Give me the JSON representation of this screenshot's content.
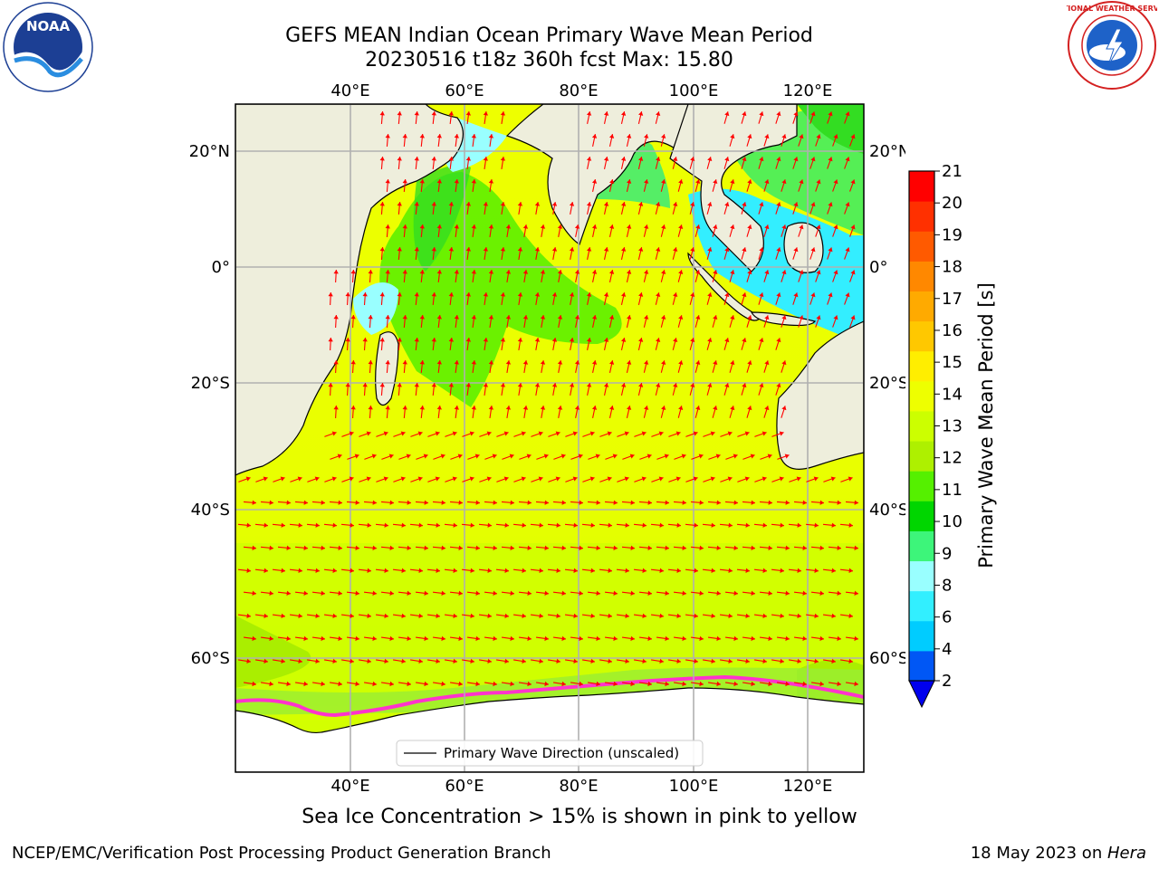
{
  "title": {
    "line1": "GEFS MEAN Indian Ocean Primary Wave Mean Period",
    "line2": "20230516 t18z 360h fcst   Max: 15.80"
  },
  "map": {
    "lon_labels": [
      "40°E",
      "60°E",
      "80°E",
      "100°E",
      "120°E"
    ],
    "lat_labels": [
      "20°N",
      "0°",
      "20°S",
      "40°S",
      "60°S"
    ],
    "legend_label": "Primary Wave Direction (unscaled)",
    "arrow_color": "#ff0000",
    "land_color": "#eeeedc"
  },
  "colorbar": {
    "label": "Primary Wave Mean Period [s]",
    "ticks": [
      "2",
      "4",
      "6",
      "8",
      "9",
      "10",
      "11",
      "12",
      "13",
      "14",
      "15",
      "16",
      "17",
      "18",
      "19",
      "20",
      "21"
    ],
    "colors": [
      "#0057f5",
      "#00ccff",
      "#32efff",
      "#99ffff",
      "#3df57a",
      "#00d600",
      "#55f000",
      "#aef000",
      "#ccff00",
      "#eeff00",
      "#ffee00",
      "#ffc800",
      "#ffaa00",
      "#ff8800",
      "#ff5a00",
      "#ff3000",
      "#ff0000"
    ],
    "underflow_color": "#0000ee"
  },
  "note": "Sea Ice Concentration > 15% is shown in pink to yellow",
  "footer": {
    "left": "NCEP/EMC/Verification Post Processing Product Generation Branch",
    "date": "18 May 2023 on ",
    "machine": "Hera"
  },
  "logos": {
    "noaa": {
      "text": "NOAA"
    },
    "nws": {
      "text": "NATIONAL WEATHER SERVICE"
    }
  }
}
